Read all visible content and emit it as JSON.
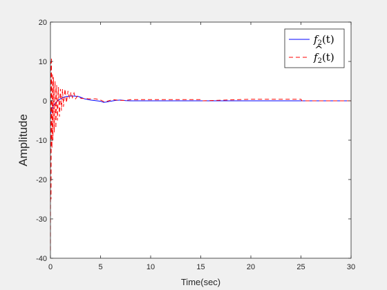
{
  "chart_data": {
    "type": "line",
    "title": "",
    "xlabel": "Time(sec)",
    "ylabel": "Amplitude",
    "xlim": [
      0,
      30
    ],
    "ylim": [
      -40,
      20
    ],
    "xticks": [
      0,
      5,
      10,
      15,
      20,
      25,
      30
    ],
    "xtick_labels": [
      "0",
      "5",
      "10",
      "15",
      "20",
      "25",
      "30"
    ],
    "yticks": [
      -40,
      -30,
      -20,
      -10,
      0,
      10,
      20
    ],
    "ytick_labels": [
      "-40",
      "-30",
      "-20",
      "-10",
      "0",
      "10",
      "20"
    ],
    "grid": false,
    "legend_position": "top-right",
    "series": [
      {
        "name": "f2(t)",
        "legend_base": "f",
        "legend_sub": "2",
        "legend_arg": "(t)",
        "legend_hat": false,
        "color": "#0000ff",
        "dash": "solid",
        "x": [
          0,
          0.05,
          0.1,
          0.2,
          0.3,
          0.5,
          0.7,
          1.0,
          1.3,
          1.6,
          2.0,
          2.4,
          2.8,
          3.0,
          3.4,
          4.0,
          4.5,
          5.0,
          5.3,
          5.6,
          6.0,
          6.5,
          7.0,
          7.5,
          8.0,
          10,
          15,
          20,
          25,
          30
        ],
        "y": [
          -3.5,
          -3.0,
          -2.5,
          -1.8,
          -1.2,
          -0.6,
          0.0,
          0.5,
          0.9,
          1.1,
          1.2,
          1.2,
          1.1,
          0.9,
          0.5,
          0.2,
          0.05,
          -0.1,
          -0.4,
          -0.3,
          -0.1,
          0.1,
          0.2,
          0.05,
          0.0,
          0.0,
          0.0,
          0.0,
          0.0,
          0.0
        ]
      },
      {
        "name": "f̂2(t)",
        "legend_base": "f",
        "legend_sub": "2",
        "legend_arg": "(t)",
        "legend_hat": true,
        "color": "#ff0000",
        "dash": "dashed",
        "x": [
          0,
          0.03,
          0.06,
          0.1,
          0.15,
          0.2,
          0.25,
          0.3,
          0.38,
          0.46,
          0.54,
          0.62,
          0.7,
          0.8,
          0.9,
          1.0,
          1.1,
          1.2,
          1.3,
          1.45,
          1.6,
          1.75,
          1.9,
          2.05,
          2.2,
          2.35,
          2.5,
          2.7,
          2.9,
          3.1,
          3.4,
          3.8,
          4.5,
          5.0,
          5.4,
          5.8,
          6.2,
          6.6,
          7.0,
          7.5,
          8.0,
          10.0,
          15.0,
          15.1,
          20.0,
          25.0,
          25.1,
          30
        ],
        "y": [
          -38,
          10,
          -25,
          11,
          -12,
          7,
          -10,
          6,
          -8,
          5,
          -7,
          4,
          -5,
          3.5,
          -4,
          3,
          -2.5,
          3,
          -1.5,
          3,
          -0.5,
          2.5,
          0.5,
          2.2,
          0.8,
          2,
          0.5,
          1.2,
          0.8,
          0.6,
          0.6,
          0.5,
          0.5,
          0.2,
          -0.3,
          0.0,
          0.3,
          0.2,
          0.1,
          0.1,
          0.3,
          0.3,
          0.3,
          0.0,
          0.4,
          0.4,
          0.0,
          0.0
        ]
      }
    ]
  }
}
